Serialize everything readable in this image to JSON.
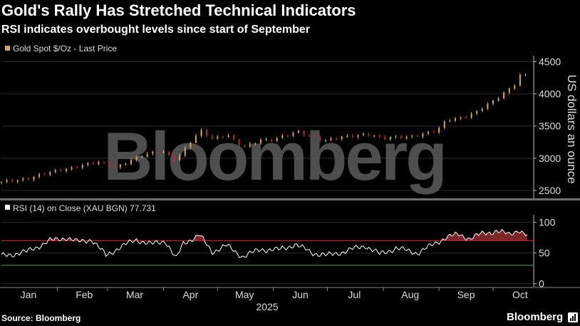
{
  "title": "Gold's Rally Has Stretched Technical Indicators",
  "subtitle": "RSI indicates overbought levels since start of September",
  "source": "Source: Bloomberg",
  "brand": "Bloomberg",
  "watermark": "Bloomberg",
  "colors": {
    "background": "#000000",
    "price_up": "#d9a55a",
    "price_down": "#b52b3a",
    "rsi_line": "#ffffff",
    "overbought_line": "#c0202a",
    "oversold_line": "#3a8a3a",
    "overbought_fill": "#8a2a2e",
    "grid": "#2b2b2b"
  },
  "chart_data": [
    {
      "type": "candlestick",
      "legend": "Gold Spot $/Oz - Last Price",
      "ylabel": "US dollars an ounce",
      "y_axis_side": "right",
      "ylim": [
        2400,
        4550
      ],
      "yticks": [
        2500,
        3000,
        3500,
        4000,
        4500
      ],
      "grid": true,
      "x_start": "2025-01-01",
      "x_end": "2025-10-20",
      "points": [
        {
          "date": "2025-01-01",
          "value": 2620
        },
        {
          "date": "2025-01-15",
          "value": 2690
        },
        {
          "date": "2025-02-01",
          "value": 2800
        },
        {
          "date": "2025-02-15",
          "value": 2900
        },
        {
          "date": "2025-02-25",
          "value": 2930
        },
        {
          "date": "2025-03-05",
          "value": 2860
        },
        {
          "date": "2025-03-15",
          "value": 2990
        },
        {
          "date": "2025-03-31",
          "value": 3120
        },
        {
          "date": "2025-04-08",
          "value": 2980
        },
        {
          "date": "2025-04-15",
          "value": 3220
        },
        {
          "date": "2025-04-22",
          "value": 3420
        },
        {
          "date": "2025-04-28",
          "value": 3310
        },
        {
          "date": "2025-05-06",
          "value": 3380
        },
        {
          "date": "2025-05-15",
          "value": 3150
        },
        {
          "date": "2025-05-25",
          "value": 3290
        },
        {
          "date": "2025-06-01",
          "value": 3300
        },
        {
          "date": "2025-06-15",
          "value": 3400
        },
        {
          "date": "2025-06-30",
          "value": 3280
        },
        {
          "date": "2025-07-10",
          "value": 3320
        },
        {
          "date": "2025-07-23",
          "value": 3390
        },
        {
          "date": "2025-08-01",
          "value": 3300
        },
        {
          "date": "2025-08-15",
          "value": 3340
        },
        {
          "date": "2025-08-31",
          "value": 3420
        },
        {
          "date": "2025-09-05",
          "value": 3590
        },
        {
          "date": "2025-09-15",
          "value": 3650
        },
        {
          "date": "2025-09-22",
          "value": 3720
        },
        {
          "date": "2025-10-01",
          "value": 3880
        },
        {
          "date": "2025-10-08",
          "value": 4040
        },
        {
          "date": "2025-10-14",
          "value": 4180
        },
        {
          "date": "2025-10-17",
          "value": 4350
        },
        {
          "date": "2025-10-20",
          "value": 4260
        }
      ]
    },
    {
      "type": "line",
      "legend": "RSI (14)  on Close (XAU BGN) 77.731",
      "y_axis_side": "right",
      "ylim": [
        -5,
        110
      ],
      "yticks": [
        0,
        50,
        100
      ],
      "grid": true,
      "overbought_level": 70,
      "oversold_level": 30,
      "points": [
        {
          "date": "2025-01-01",
          "value": 45
        },
        {
          "date": "2025-01-15",
          "value": 52
        },
        {
          "date": "2025-01-28",
          "value": 70
        },
        {
          "date": "2025-02-06",
          "value": 75
        },
        {
          "date": "2025-02-12",
          "value": 68
        },
        {
          "date": "2025-02-20",
          "value": 72
        },
        {
          "date": "2025-02-28",
          "value": 46
        },
        {
          "date": "2025-03-07",
          "value": 58
        },
        {
          "date": "2025-03-17",
          "value": 72
        },
        {
          "date": "2025-03-25",
          "value": 64
        },
        {
          "date": "2025-04-02",
          "value": 70
        },
        {
          "date": "2025-04-08",
          "value": 40
        },
        {
          "date": "2025-04-12",
          "value": 66
        },
        {
          "date": "2025-04-21",
          "value": 79
        },
        {
          "date": "2025-04-28",
          "value": 52
        },
        {
          "date": "2025-05-06",
          "value": 62
        },
        {
          "date": "2025-05-15",
          "value": 44
        },
        {
          "date": "2025-05-25",
          "value": 56
        },
        {
          "date": "2025-06-04",
          "value": 55
        },
        {
          "date": "2025-06-13",
          "value": 64
        },
        {
          "date": "2025-06-23",
          "value": 50
        },
        {
          "date": "2025-07-01",
          "value": 46
        },
        {
          "date": "2025-07-10",
          "value": 52
        },
        {
          "date": "2025-07-22",
          "value": 62
        },
        {
          "date": "2025-07-30",
          "value": 48
        },
        {
          "date": "2025-08-08",
          "value": 58
        },
        {
          "date": "2025-08-20",
          "value": 50
        },
        {
          "date": "2025-08-29",
          "value": 64
        },
        {
          "date": "2025-09-05",
          "value": 76
        },
        {
          "date": "2025-09-12",
          "value": 80
        },
        {
          "date": "2025-09-18",
          "value": 74
        },
        {
          "date": "2025-09-26",
          "value": 82
        },
        {
          "date": "2025-10-03",
          "value": 86
        },
        {
          "date": "2025-10-10",
          "value": 80
        },
        {
          "date": "2025-10-15",
          "value": 88
        },
        {
          "date": "2025-10-20",
          "value": 77.7
        }
      ]
    }
  ],
  "x_axis": {
    "month_labels": [
      "Jan",
      "Feb",
      "Mar",
      "Apr",
      "May",
      "Jun",
      "Jul",
      "Aug",
      "Sep",
      "Oct"
    ],
    "year_label": "2025"
  }
}
